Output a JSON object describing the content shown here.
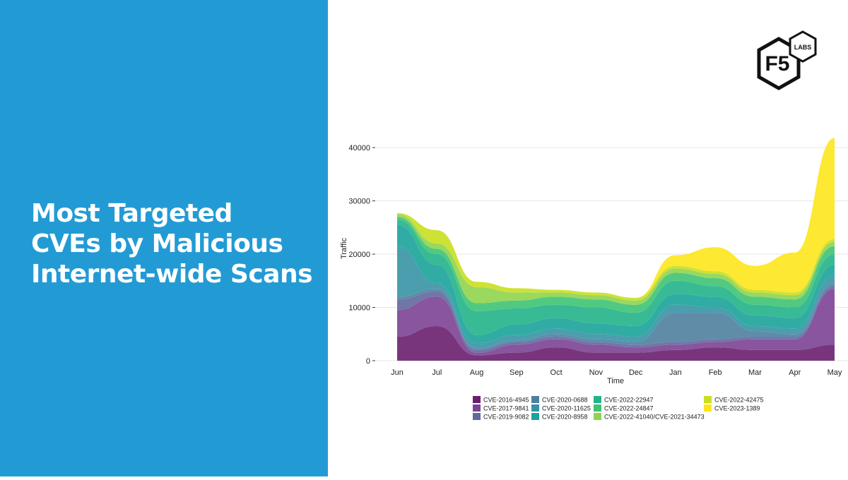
{
  "headline": {
    "line1": "Most Targeted",
    "line2": "CVEs by Malicious",
    "line3": "Internet-wide Scans"
  },
  "logo": {
    "brand": "F5",
    "sub": "LABS"
  },
  "colors": {
    "panel": "#229bd5",
    "headline": "#ffffff",
    "grid": "#e4e4e4"
  },
  "chart_data": {
    "type": "area",
    "subtype": "stacked-streamgraph",
    "title": "",
    "xlabel": "Time",
    "ylabel": "Traffic",
    "ylim": [
      0,
      42000
    ],
    "yticks": [
      0,
      10000,
      20000,
      30000,
      40000
    ],
    "categories": [
      "Jun",
      "Jul",
      "Aug",
      "Sep",
      "Oct",
      "Nov",
      "Dec",
      "Jan",
      "Feb",
      "Mar",
      "Apr",
      "May"
    ],
    "series": [
      {
        "name": "CVE-2016-4945",
        "color": "#6a1f6e",
        "values": [
          4500,
          6500,
          1000,
          1500,
          2500,
          1500,
          1500,
          2000,
          2500,
          2000,
          2000,
          3000
        ]
      },
      {
        "name": "CVE-2017-9841",
        "color": "#7b4393",
        "values": [
          5000,
          5500,
          500,
          1500,
          1500,
          1500,
          1000,
          1000,
          1000,
          2000,
          2000,
          10500
        ]
      },
      {
        "name": "CVE-2019-9082",
        "color": "#62679f",
        "values": [
          2000,
          1000,
          500,
          500,
          500,
          500,
          500,
          500,
          500,
          500,
          500,
          500
        ]
      },
      {
        "name": "CVE-2020-0688",
        "color": "#4f7f9f",
        "values": [
          500,
          500,
          300,
          300,
          500,
          500,
          500,
          5500,
          5000,
          1000,
          500,
          500
        ]
      },
      {
        "name": "CVE-2020-11625",
        "color": "#3793a4",
        "values": [
          9500,
          1000,
          1000,
          1000,
          1000,
          1000,
          1000,
          1500,
          1000,
          1000,
          1000,
          1500
        ]
      },
      {
        "name": "CVE-2020-8958",
        "color": "#1ba39b",
        "values": [
          4000,
          3500,
          1500,
          2000,
          2000,
          2000,
          2000,
          2000,
          2000,
          2000,
          2000,
          2000
        ]
      },
      {
        "name": "CVE-2022-22947",
        "color": "#22b48a",
        "values": [
          1000,
          2000,
          4500,
          3000,
          2500,
          3000,
          2500,
          2500,
          2000,
          2000,
          2000,
          2000
        ]
      },
      {
        "name": "CVE-2022-24847",
        "color": "#3fc373",
        "values": [
          500,
          1000,
          1500,
          1500,
          1500,
          1500,
          1500,
          1500,
          1500,
          1500,
          1500,
          1500
        ]
      },
      {
        "name": "CVE-2022-41040/CVE-2021-34473",
        "color": "#8fd44c",
        "values": [
          500,
          1000,
          3000,
          1500,
          800,
          800,
          800,
          800,
          800,
          800,
          800,
          800
        ]
      },
      {
        "name": "CVE-2022-42475",
        "color": "#c9df1f",
        "values": [
          200,
          2500,
          1000,
          800,
          500,
          500,
          500,
          500,
          500,
          500,
          500,
          500
        ]
      },
      {
        "name": "CVE-2023-1389",
        "color": "#fde51c",
        "values": [
          0,
          0,
          0,
          0,
          0,
          0,
          0,
          2000,
          4500,
          4500,
          7500,
          19000
        ]
      }
    ]
  }
}
